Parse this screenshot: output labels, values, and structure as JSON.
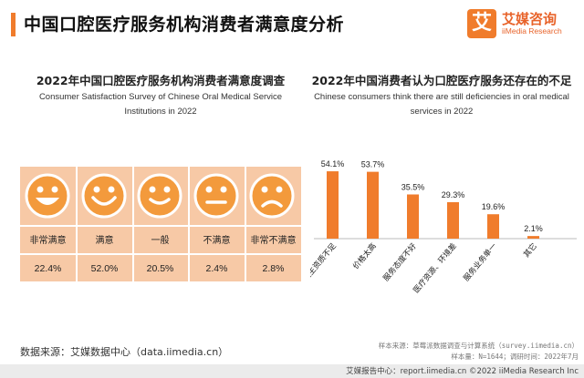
{
  "header": {
    "title": "中国口腔医疗服务机构消费者满意度分析"
  },
  "logo": {
    "mark": "艾",
    "cn": "艾媒咨询",
    "en": "iiMedia Research"
  },
  "left_section": {
    "title": "2022年中国口腔医疗服务机构消费者满意度调查",
    "subtitle_line1": "Consumer Satisfaction Survey of Chinese Oral Medical Service",
    "subtitle_line2": "Institutions in 2022"
  },
  "right_section": {
    "title": "2022年中国消费者认为口腔医疗服务还存在的不足",
    "subtitle_line1": "Chinese consumers think there are still deficiencies in oral medical",
    "subtitle_line2": "services in 2022"
  },
  "colors": {
    "accent": "#f07c2c",
    "bar": "#f07c2c",
    "table_bg": "#f7c9a6",
    "face_fill": "#f39a3c"
  },
  "chart_data": [
    {
      "type": "table",
      "title": "2022年中国口腔医疗服务机构消费者满意度调查",
      "categories": [
        "非常满意",
        "满意",
        "一般",
        "不满意",
        "非常不满意"
      ],
      "icons": [
        "very-happy-face-icon",
        "happy-face-icon",
        "smile-face-icon",
        "neutral-face-icon",
        "sad-face-icon"
      ],
      "values": [
        22.4,
        52.0,
        20.5,
        2.4,
        2.8
      ],
      "value_labels": [
        "22.4%",
        "52.0%",
        "20.5%",
        "2.4%",
        "2.8%"
      ],
      "unit": "%"
    },
    {
      "type": "bar",
      "title": "2022年中国消费者认为口腔医疗服务还存在的不足",
      "categories": [
        "医生资质不足",
        "价格太高",
        "服务态度不好",
        "医疗资源、环境差",
        "服务业务单一",
        "其它"
      ],
      "values": [
        54.1,
        53.7,
        35.5,
        29.3,
        19.6,
        2.1
      ],
      "value_labels": [
        "54.1%",
        "53.7%",
        "35.5%",
        "29.3%",
        "19.6%",
        "2.1%"
      ],
      "ylim": [
        0,
        60
      ],
      "unit": "%",
      "grid": false
    }
  ],
  "footer": {
    "source": "数据来源：艾媒数据中心（data.iimedia.cn）",
    "note1": "样本来源：草莓派数据调查与计算系统（survey.iimedia.cn）",
    "note2": "样本量：N=1644；调研时间：2022年7月",
    "bottom": "艾媒报告中心：report.iimedia.cn  ©2022  iiMedia Research  Inc"
  }
}
